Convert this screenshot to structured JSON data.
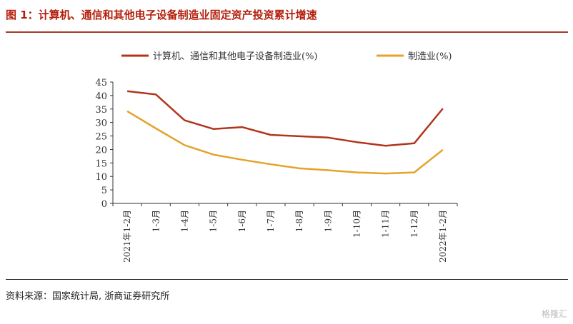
{
  "title": "图 1：计算机、通信和其他电子设备制造业固定资产投资累计增速",
  "source": "资料来源：国家统计局, 浙商证券研究所",
  "watermark": "格隆汇",
  "chart_data": {
    "type": "line",
    "categories": [
      "2021年1-2月",
      "1-3月",
      "1-4月",
      "1-5月",
      "1-6月",
      "1-7月",
      "1-8月",
      "1-9月",
      "1-10月",
      "1-11月",
      "1-12月",
      "2022年1-2月"
    ],
    "series": [
      {
        "name": "计算机、通信和其他电子设备制造业(%)",
        "color": "#b0351b",
        "values": [
          41.6,
          40.4,
          30.8,
          27.6,
          28.3,
          25.4,
          24.9,
          24.4,
          22.7,
          21.4,
          22.3,
          35.2
        ]
      },
      {
        "name": "制造业(%)",
        "color": "#e5a22c",
        "values": [
          34.2,
          27.8,
          21.6,
          18.1,
          16.2,
          14.5,
          13.0,
          12.3,
          11.5,
          11.1,
          11.5,
          19.9
        ]
      }
    ],
    "ylim": [
      0,
      45
    ],
    "yticks": [
      0,
      5,
      10,
      15,
      20,
      25,
      30,
      35,
      40,
      45
    ],
    "legend": "top",
    "grid": false
  }
}
